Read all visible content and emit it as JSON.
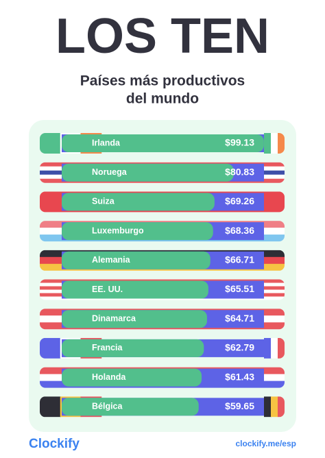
{
  "chart_data": {
    "type": "bar",
    "title": "LOS TEN",
    "subtitle": [
      "Países más productivos",
      "del mundo"
    ],
    "categories": [
      "Irlanda",
      "Noruega",
      "Suiza",
      "Luxemburgo",
      "Alemania",
      "EE. UU.",
      "Dinamarca",
      "Francia",
      "Holanda",
      "Bélgica"
    ],
    "values": [
      99.13,
      80.83,
      69.26,
      68.36,
      66.71,
      65.51,
      64.71,
      62.79,
      61.43,
      59.65
    ],
    "value_labels": [
      "$99.13",
      "$80.83",
      "$69.26",
      "$68.36",
      "$66.71",
      "$65.51",
      "$64.71",
      "$62.79",
      "$61.43",
      "$59.65"
    ],
    "color": "#52bf8c",
    "track_color": "#5d63e6",
    "flags": [
      {
        "dir": "v",
        "colors": [
          "#52bf8c",
          "#ffffff",
          "#f5894b"
        ]
      },
      {
        "dir": "h",
        "colors": [
          "#e8585e",
          "#ffffff",
          "#3d4fa8",
          "#ffffff",
          "#e8585e"
        ]
      },
      {
        "dir": "h",
        "colors": [
          "#e8474f"
        ]
      },
      {
        "dir": "h",
        "colors": [
          "#ef7f86",
          "#ffffff",
          "#7fc6ef"
        ]
      },
      {
        "dir": "h",
        "colors": [
          "#2e2e36",
          "#e8474f",
          "#f6c343"
        ]
      },
      {
        "dir": "h",
        "colors": [
          "#e8585e",
          "#ffffff",
          "#e8585e",
          "#ffffff",
          "#e8585e",
          "#ffffff"
        ]
      },
      {
        "dir": "h",
        "colors": [
          "#e8585e",
          "#ffffff",
          "#e8585e"
        ]
      },
      {
        "dir": "v",
        "colors": [
          "#5d63e6",
          "#ffffff",
          "#e8585e"
        ]
      },
      {
        "dir": "h",
        "colors": [
          "#e8585e",
          "#ffffff",
          "#5d63e6"
        ]
      },
      {
        "dir": "v",
        "colors": [
          "#2e2e36",
          "#f6c343",
          "#e8585e"
        ]
      }
    ]
  },
  "footer": {
    "brand": "Clockify",
    "url": "clockify.me/esp"
  }
}
